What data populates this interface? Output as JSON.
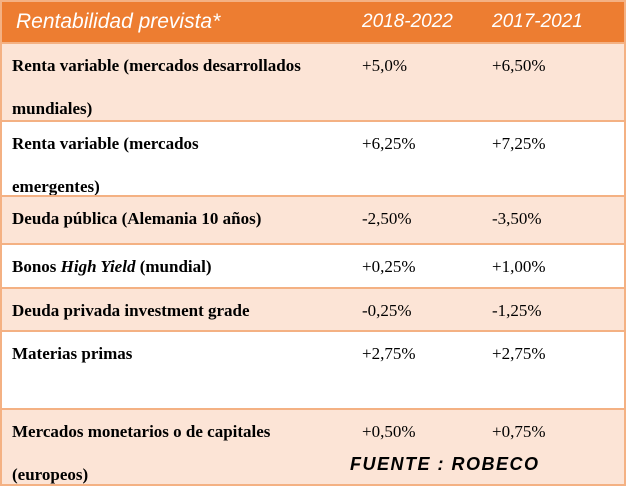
{
  "table": {
    "title": "Rentabilidad prevista*",
    "columns": [
      "2018-2022",
      "2017-2021"
    ],
    "rows": [
      {
        "label": "Renta variable (mercados desarrollados\nmundiales)",
        "values": [
          "+5,0%",
          "+6,50%"
        ]
      },
      {
        "label": "Renta variable (mercados\nemergentes)",
        "values": [
          "+6,25%",
          "+7,25%"
        ]
      },
      {
        "label": "Deuda pública (Alemania 10 años)",
        "values": [
          "-2,50%",
          "-3,50%"
        ]
      },
      {
        "label_pre": "Bonos ",
        "label_em": "High Yield",
        "label_post": " (mundial)",
        "values": [
          "+0,25%",
          "+1,00%"
        ]
      },
      {
        "label": "Deuda privada investment grade",
        "values": [
          "-0,25%",
          "-1,25%"
        ]
      },
      {
        "label": "Materias primas",
        "values": [
          "+2,75%",
          "+2,75%"
        ]
      },
      {
        "label": "Mercados monetarios o de capitales\n(europeos)",
        "values": [
          "+0,50%",
          "+0,75%"
        ]
      }
    ],
    "source": "FUENTE : ROBECO"
  },
  "colors": {
    "header_bg": "#ED7D31",
    "header_text": "#FFFFFF",
    "row_alt_bg": "#FCE4D6",
    "row_bg": "#FFFFFF",
    "border": "#F4B183",
    "text": "#000000"
  }
}
